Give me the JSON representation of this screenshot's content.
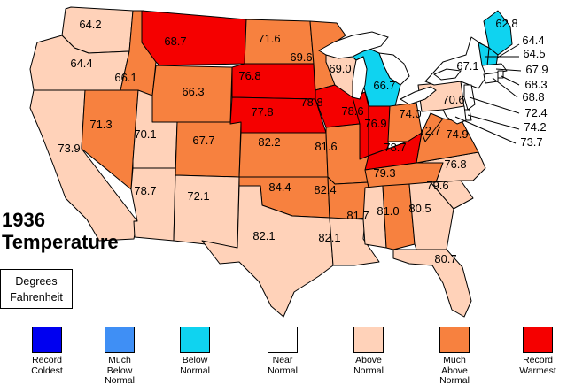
{
  "title": [
    "1936",
    "Temperature"
  ],
  "units": [
    "Degrees",
    "Fahrenheit"
  ],
  "colors": {
    "record_coldest": "#0000f0",
    "much_below": "#3f8ff5",
    "below": "#0fd3f0",
    "near": "#ffffff",
    "above": "#ffd2b9",
    "much_above": "#f7813f",
    "record_warmest": "#f50000"
  },
  "legend": [
    {
      "key": "record_coldest",
      "label": [
        "Record",
        "Coldest"
      ]
    },
    {
      "key": "much_below",
      "label": [
        "Much",
        "Below",
        "Normal"
      ]
    },
    {
      "key": "below",
      "label": [
        "Below",
        "Normal"
      ]
    },
    {
      "key": "near",
      "label": [
        "Near",
        "Normal"
      ]
    },
    {
      "key": "above",
      "label": [
        "Above",
        "Normal"
      ]
    },
    {
      "key": "much_above",
      "label": [
        "Much",
        "Above",
        "Normal"
      ]
    },
    {
      "key": "record_warmest",
      "label": [
        "Record",
        "Warmest"
      ]
    }
  ],
  "states": [
    {
      "id": "WA",
      "value": "64.2",
      "category": "above"
    },
    {
      "id": "OR",
      "value": "64.4",
      "category": "above"
    },
    {
      "id": "CA",
      "value": "73.9",
      "category": "above"
    },
    {
      "id": "ID",
      "value": "66.1",
      "category": "much_above"
    },
    {
      "id": "NV",
      "value": "71.3",
      "category": "much_above"
    },
    {
      "id": "MT",
      "value": "68.7",
      "category": "record_warmest"
    },
    {
      "id": "WY",
      "value": "66.3",
      "category": "much_above"
    },
    {
      "id": "UT",
      "value": "70.1",
      "category": "above"
    },
    {
      "id": "AZ",
      "value": "78.7",
      "category": "above"
    },
    {
      "id": "CO",
      "value": "67.7",
      "category": "much_above"
    },
    {
      "id": "NM",
      "value": "72.1",
      "category": "above"
    },
    {
      "id": "ND",
      "value": "71.6",
      "category": "much_above"
    },
    {
      "id": "SD",
      "value": "76.8",
      "category": "record_warmest"
    },
    {
      "id": "NE",
      "value": "77.8",
      "category": "record_warmest"
    },
    {
      "id": "KS",
      "value": "82.2",
      "category": "much_above"
    },
    {
      "id": "OK",
      "value": "84.4",
      "category": "much_above"
    },
    {
      "id": "TX",
      "value": "82.1",
      "category": "above"
    },
    {
      "id": "MN",
      "value": "69.6",
      "category": "much_above"
    },
    {
      "id": "IA",
      "value": "78.8",
      "category": "record_warmest"
    },
    {
      "id": "MO",
      "value": "81.6",
      "category": "much_above"
    },
    {
      "id": "AR",
      "value": "82.4",
      "category": "much_above"
    },
    {
      "id": "LA",
      "value": "82.1",
      "category": "above"
    },
    {
      "id": "WI",
      "value": "69.0",
      "category": "above"
    },
    {
      "id": "MI",
      "value": "66.7",
      "category": "below"
    },
    {
      "id": "IL",
      "value": "78.6",
      "category": "record_warmest"
    },
    {
      "id": "IN",
      "value": "76.9",
      "category": "record_warmest"
    },
    {
      "id": "OH",
      "value": "74.0",
      "category": "much_above"
    },
    {
      "id": "KY",
      "value": "78.7",
      "category": "record_warmest"
    },
    {
      "id": "TN",
      "value": "79.3",
      "category": "much_above"
    },
    {
      "id": "MS",
      "value": "81.7",
      "category": "above"
    },
    {
      "id": "AL",
      "value": "81.0",
      "category": "much_above"
    },
    {
      "id": "GA",
      "value": "80.5",
      "category": "above"
    },
    {
      "id": "FL",
      "value": "80.7",
      "category": "above"
    },
    {
      "id": "SC",
      "value": "79.6",
      "category": "above"
    },
    {
      "id": "NC",
      "value": "76.8",
      "category": "above"
    },
    {
      "id": "VA",
      "value": "74.9",
      "category": "much_above"
    },
    {
      "id": "WV",
      "value": "72.7",
      "category": "much_above"
    },
    {
      "id": "PA",
      "value": "70.6",
      "category": "above"
    },
    {
      "id": "NY",
      "value": "67.1",
      "category": "near"
    },
    {
      "id": "ME",
      "value": "62.8",
      "category": "below"
    },
    {
      "id": "NH",
      "value": "64.4",
      "category": "below"
    },
    {
      "id": "VT",
      "value": "64.5",
      "category": "below"
    },
    {
      "id": "MA",
      "value": "67.9",
      "category": "near"
    },
    {
      "id": "RI",
      "value": "68.3",
      "category": "near"
    },
    {
      "id": "CT",
      "value": "68.8",
      "category": "near"
    },
    {
      "id": "NJ",
      "value": "72.4",
      "category": "near"
    },
    {
      "id": "DE",
      "value": "74.2",
      "category": "near"
    },
    {
      "id": "MD",
      "value": "73.7",
      "category": "near"
    }
  ]
}
